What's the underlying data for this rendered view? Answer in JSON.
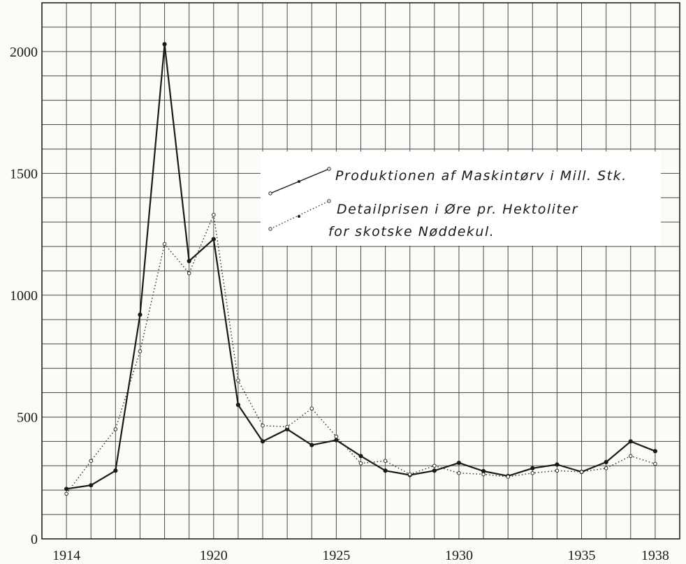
{
  "chart_data": {
    "type": "line",
    "title": "",
    "xlabel": "",
    "ylabel": "",
    "x": [
      1914,
      1915,
      1916,
      1917,
      1918,
      1919,
      1920,
      1921,
      1922,
      1923,
      1924,
      1925,
      1926,
      1927,
      1928,
      1929,
      1930,
      1931,
      1932,
      1933,
      1934,
      1935,
      1936,
      1937,
      1938
    ],
    "x_tick_labels": [
      "1914",
      "1920",
      "1925",
      "1930",
      "1935",
      "1938"
    ],
    "y_tick_labels": [
      "0",
      "500",
      "1000",
      "1500",
      "2000"
    ],
    "xlim": [
      1913.0,
      1939.0
    ],
    "ylim": [
      0,
      2200
    ],
    "grid": true,
    "grid_x_step": 1,
    "grid_y_step": 100,
    "legend_position": "upper-right",
    "series": [
      {
        "name": "Produktionen af Maskintørv i Mill. Stk.",
        "style": "solid",
        "color": "#1a1a1a",
        "values": [
          205,
          220,
          280,
          920,
          2030,
          1140,
          1230,
          550,
          400,
          450,
          385,
          405,
          340,
          280,
          262,
          280,
          312,
          278,
          258,
          290,
          305,
          275,
          315,
          400,
          360
        ]
      },
      {
        "name": "Detailprisen i Øre pr. Hektoliter for skotske Nøddekul.",
        "style": "dotted",
        "color": "#2a2a2a",
        "values": [
          185,
          320,
          450,
          770,
          1210,
          1090,
          1330,
          650,
          465,
          460,
          535,
          420,
          310,
          320,
          265,
          300,
          270,
          265,
          255,
          270,
          280,
          275,
          290,
          340,
          308
        ]
      }
    ]
  },
  "legend": {
    "line1": "Produktionen af Maskintørv i Mill. Stk.",
    "line2": "Detailprisen i Øre pr. Hektoliter",
    "line3": "for skotske Nøddekul."
  }
}
